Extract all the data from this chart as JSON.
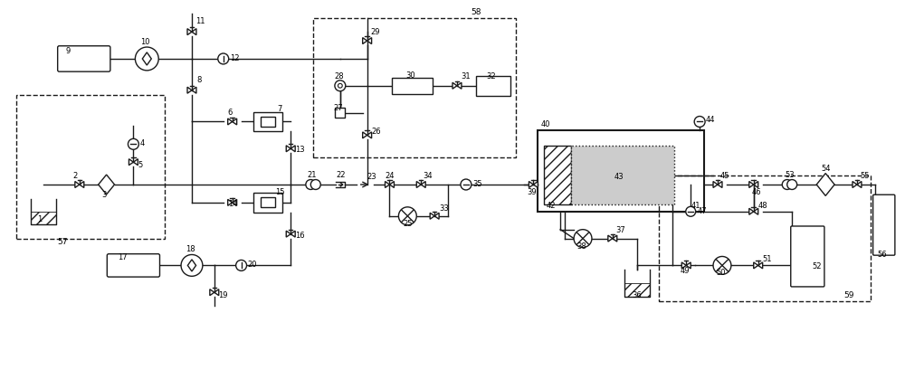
{
  "bg_color": "#ffffff",
  "lc": "#1a1a1a",
  "lw": 1.0,
  "fig_w": 10.0,
  "fig_h": 4.1,
  "dpi": 100,
  "xlim": [
    0,
    100
  ],
  "ylim": [
    0,
    41
  ]
}
